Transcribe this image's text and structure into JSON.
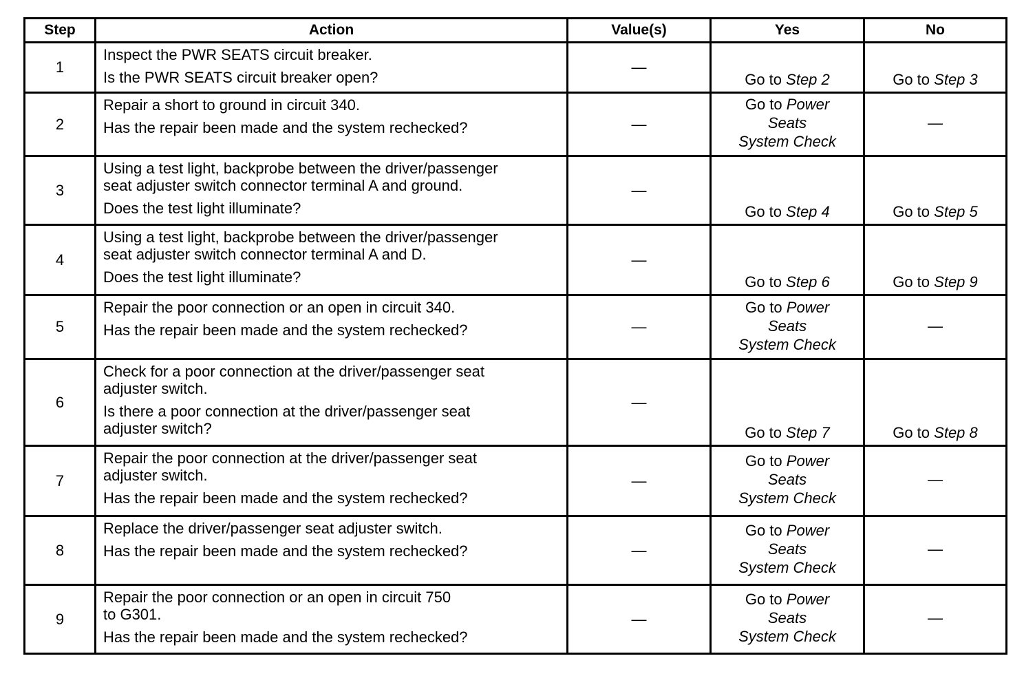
{
  "headers": {
    "step": "Step",
    "action": "Action",
    "values": "Value(s)",
    "yes": "Yes",
    "no": "No"
  },
  "rows": [
    {
      "step": "1",
      "action": [
        [
          "Inspect the PWR SEATS circuit breaker."
        ],
        [
          "Is the PWR SEATS circuit breaker open?"
        ]
      ],
      "value": "—",
      "yes": {
        "goto": "Go to",
        "target": [
          "Step 2"
        ]
      },
      "no": {
        "goto": "Go to",
        "target": [
          "Step 3"
        ]
      }
    },
    {
      "step": "2",
      "action": [
        [
          "Repair a short to ground in circuit 340."
        ],
        [
          "Has the repair been made and the system rechecked?"
        ]
      ],
      "value": "—",
      "yes": {
        "goto": "Go to",
        "target": [
          "Power",
          "Seats",
          "System Check"
        ]
      },
      "no": {
        "text": "—"
      }
    },
    {
      "step": "3",
      "action": [
        [
          "Using a test light, backprobe between the driver/passenger",
          "seat adjuster switch connector terminal A and ground."
        ],
        [
          "Does the test light illuminate?"
        ]
      ],
      "value": "—",
      "yes": {
        "goto": "Go to",
        "target": [
          "Step 4"
        ]
      },
      "no": {
        "goto": "Go to",
        "target": [
          "Step 5"
        ]
      }
    },
    {
      "step": "4",
      "action": [
        [
          "Using a test light, backprobe between the driver/passenger",
          "seat adjuster switch connector terminal A and D."
        ],
        [
          "Does the test light illuminate?"
        ]
      ],
      "value": "—",
      "yes": {
        "goto": "Go to",
        "target": [
          "Step 6"
        ]
      },
      "no": {
        "goto": "Go to",
        "target": [
          "Step 9"
        ]
      }
    },
    {
      "step": "5",
      "action": [
        [
          "Repair the poor connection or an open in circuit 340."
        ],
        [
          "Has the repair been made and the system rechecked?"
        ]
      ],
      "value": "—",
      "yes": {
        "goto": "Go to",
        "target": [
          "Power",
          "Seats",
          "System Check"
        ]
      },
      "no": {
        "text": "—"
      }
    },
    {
      "step": "6",
      "action": [
        [
          "Check for a poor connection at the driver/passenger seat",
          "adjuster switch."
        ],
        [
          "Is there a poor connection at the driver/passenger seat",
          "adjuster switch?"
        ]
      ],
      "value": "—",
      "yes": {
        "goto": "Go to",
        "target": [
          "Step 7"
        ]
      },
      "no": {
        "goto": "Go to",
        "target": [
          "Step 8"
        ]
      }
    },
    {
      "step": "7",
      "action": [
        [
          "Repair the poor connection at the driver/passenger seat",
          "adjuster switch."
        ],
        [
          "Has the repair been made and the system rechecked?"
        ]
      ],
      "value": "—",
      "yes": {
        "goto": "Go to",
        "target": [
          "Power",
          "Seats",
          "System Check"
        ]
      },
      "no": {
        "text": "—"
      }
    },
    {
      "step": "8",
      "action": [
        [
          "Replace the driver/passenger seat adjuster switch."
        ],
        [
          "Has the repair been made and the system rechecked?"
        ]
      ],
      "value": "—",
      "yes": {
        "goto": "Go to",
        "target": [
          "Power",
          "Seats",
          "System Check"
        ]
      },
      "no": {
        "text": "—"
      }
    },
    {
      "step": "9",
      "action": [
        [
          "Repair the poor connection or an open in circuit 750",
          "to G301."
        ],
        [
          "Has the repair been made and the system rechecked?"
        ]
      ],
      "value": "—",
      "yes": {
        "goto": "Go to",
        "target": [
          "Power",
          "Seats",
          "System Check"
        ]
      },
      "no": {
        "text": "—"
      }
    }
  ]
}
